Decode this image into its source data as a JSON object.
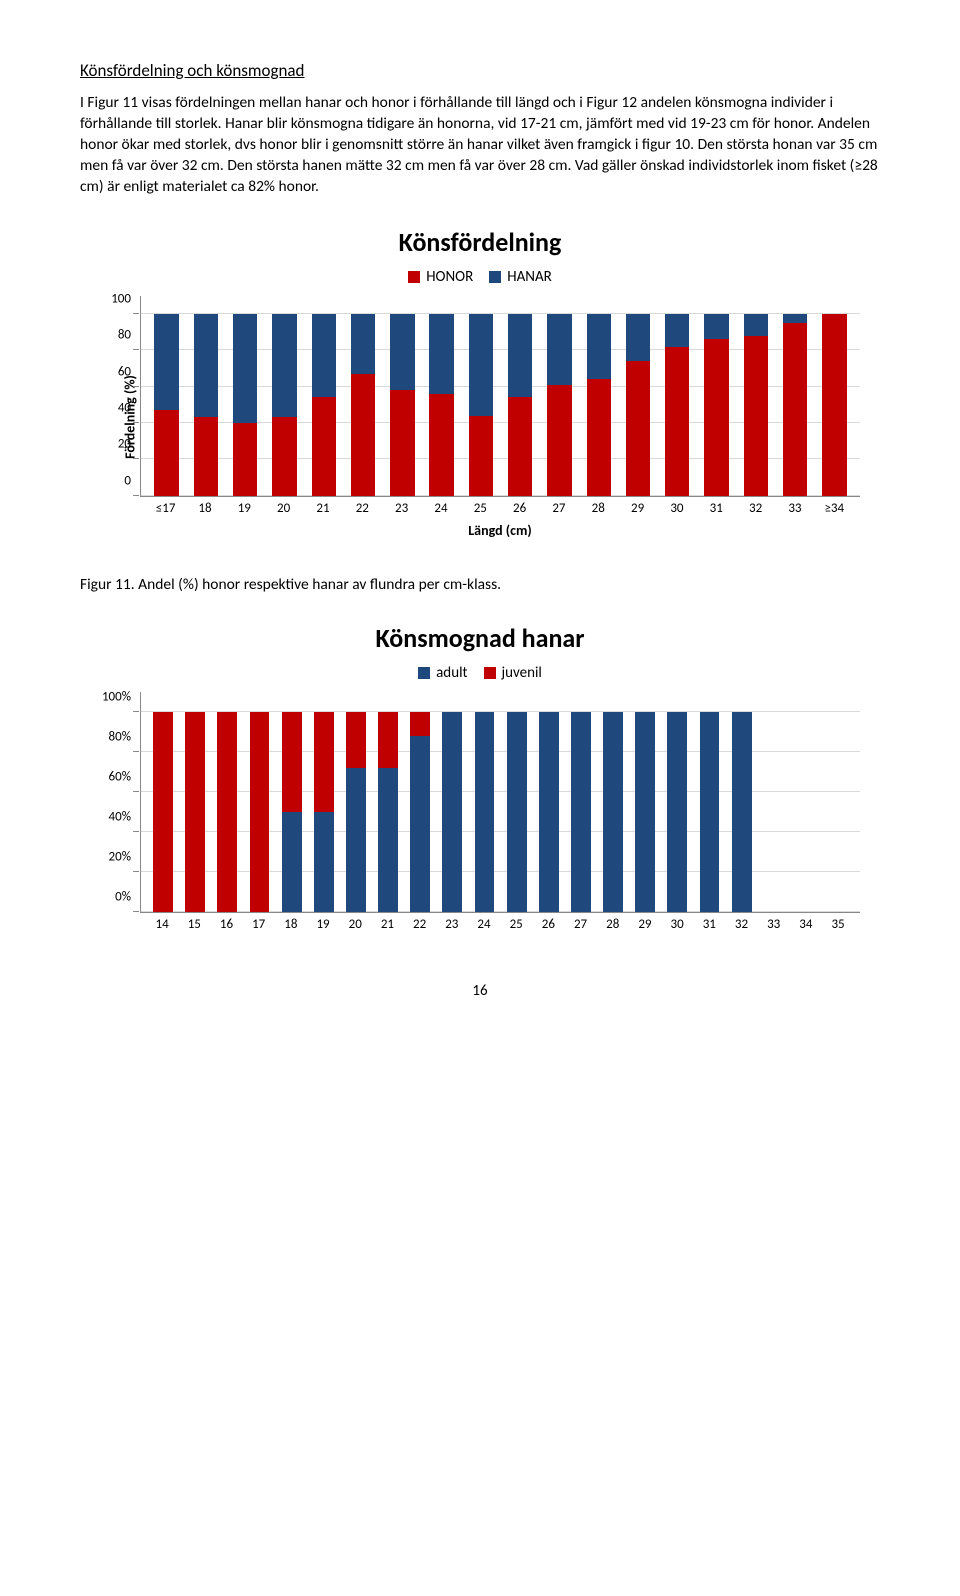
{
  "heading": "Könsfördelning och könsmognad",
  "paragraph": "I Figur 11 visas fördelningen mellan hanar och honor i förhållande till längd och i Figur 12 andelen könsmogna individer i förhållande till storlek. Hanar blir könsmogna tidigare än honorna, vid 17-21 cm, jämfört med vid 19-23 cm för honor. Andelen honor ökar med storlek, dvs honor blir i genomsnitt större än hanar vilket även framgick i figur 10. Den största honan var 35 cm men få var över 32 cm. Den största hanen mätte 32 cm men få var över 28 cm. Vad gäller önskad individstorlek inom fisket (≥28 cm) är enligt materialet ca 82% honor.",
  "chart1": {
    "title": "Könsfördelning",
    "legend": [
      {
        "label": "HONOR",
        "color": "#c00000"
      },
      {
        "label": "HANAR",
        "color": "#1f497d"
      }
    ],
    "y_label": "Fördelning (%)",
    "x_label": "Längd (cm)",
    "y_ticks": [
      0,
      20,
      40,
      60,
      80,
      100
    ],
    "y_max": 110,
    "bar_total": 100,
    "categories": [
      "≤17",
      "18",
      "19",
      "20",
      "21",
      "22",
      "23",
      "24",
      "25",
      "26",
      "27",
      "28",
      "29",
      "30",
      "31",
      "32",
      "33",
      "≥34"
    ],
    "honor": [
      47,
      43,
      40,
      43,
      54,
      67,
      58,
      56,
      44,
      54,
      61,
      64,
      74,
      82,
      86,
      88,
      95,
      100
    ],
    "colors": {
      "bottom": "#c00000",
      "top": "#1f497d"
    },
    "grid_color": "#d9d9d9"
  },
  "caption1": "Figur 11. Andel (%) honor respektive hanar av flundra per cm-klass.",
  "chart2": {
    "title": "Könsmognad hanar",
    "legend": [
      {
        "label": "adult",
        "color": "#1f497d"
      },
      {
        "label": "juvenil",
        "color": "#c00000"
      }
    ],
    "y_ticks": [
      "0%",
      "20%",
      "40%",
      "60%",
      "80%",
      "100%"
    ],
    "y_tick_vals": [
      0,
      20,
      40,
      60,
      80,
      100
    ],
    "y_max": 110,
    "bar_total": 100,
    "categories": [
      "14",
      "15",
      "16",
      "17",
      "18",
      "19",
      "20",
      "21",
      "22",
      "23",
      "24",
      "25",
      "26",
      "27",
      "28",
      "29",
      "30",
      "31",
      "32",
      "33",
      "34",
      "35"
    ],
    "adult": [
      0,
      0,
      0,
      0,
      50,
      50,
      72,
      72,
      88,
      100,
      100,
      100,
      100,
      100,
      100,
      100,
      100,
      100,
      100,
      null,
      null,
      null
    ],
    "colors": {
      "bottom": "#1f497d",
      "top": "#c00000"
    },
    "grid_color": "#d9d9d9"
  },
  "page_number": "16"
}
